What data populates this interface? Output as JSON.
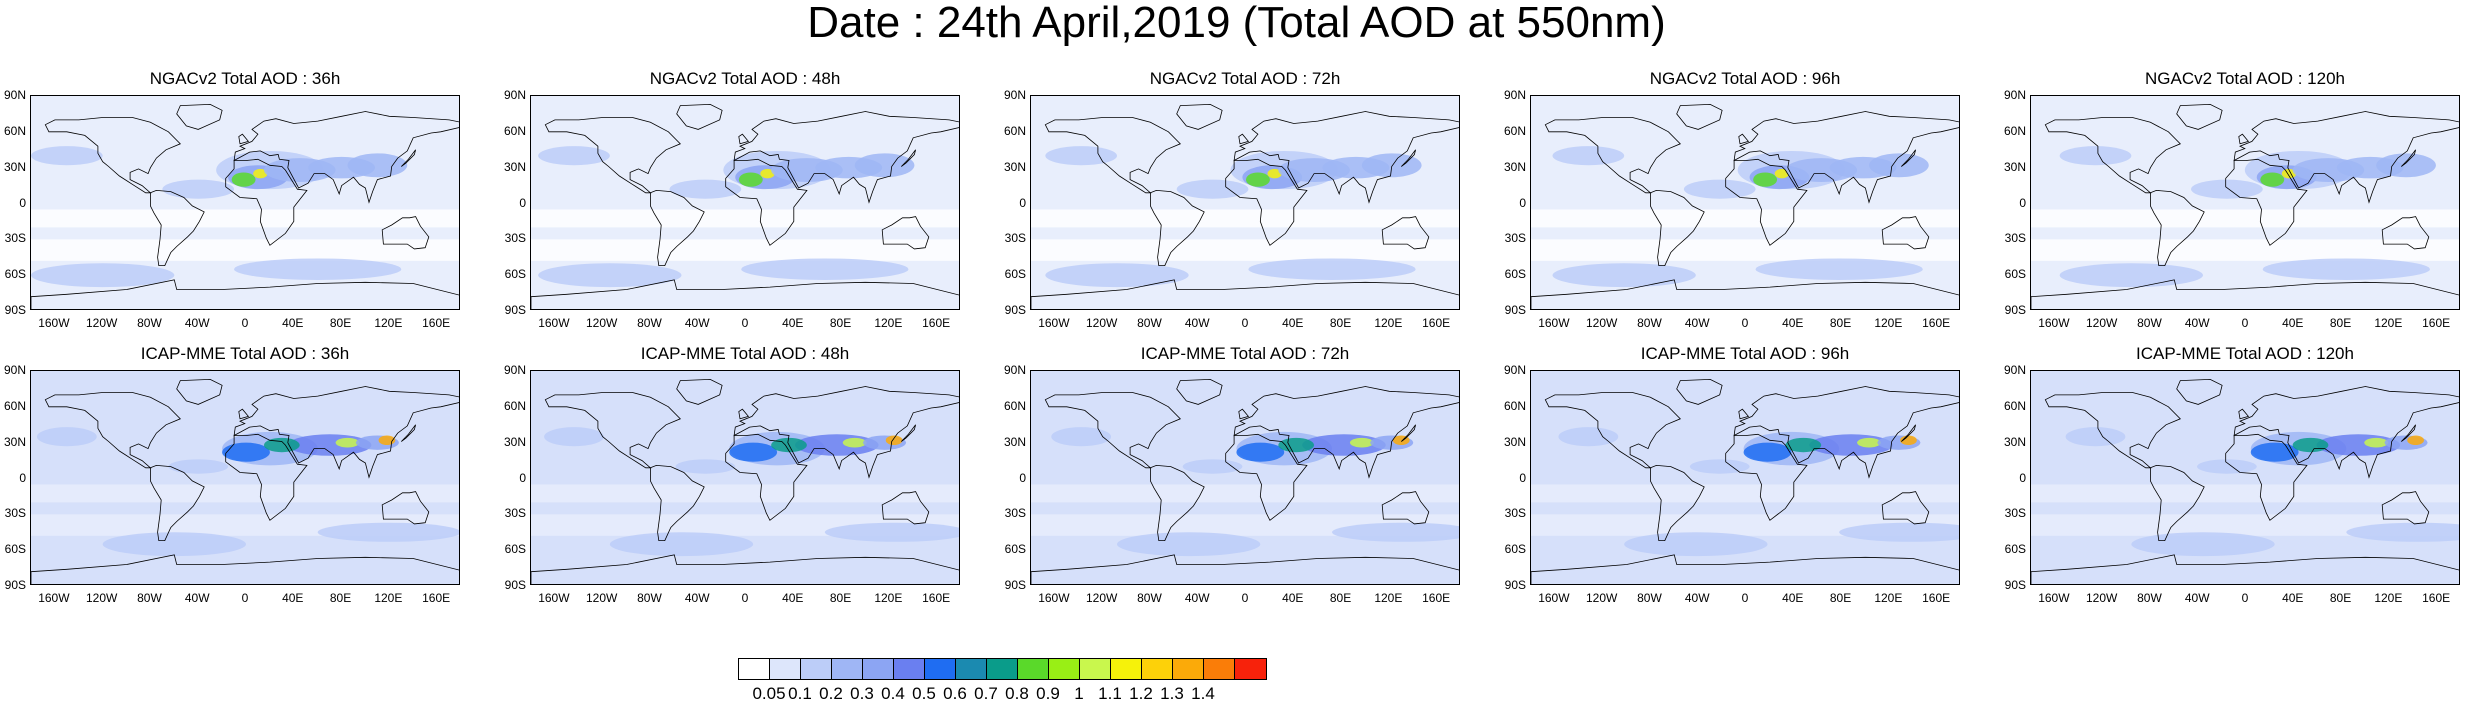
{
  "title": "Date : 24th April,2019 (Total AOD at 550nm)",
  "panels": [
    {
      "title": "NGACv2 Total AOD : 36h"
    },
    {
      "title": "NGACv2 Total AOD : 48h"
    },
    {
      "title": "NGACv2 Total AOD : 72h"
    },
    {
      "title": "NGACv2 Total AOD : 96h"
    },
    {
      "title": "NGACv2 Total AOD : 120h"
    },
    {
      "title": "ICAP-MME Total AOD : 36h"
    },
    {
      "title": "ICAP-MME Total AOD : 48h"
    },
    {
      "title": "ICAP-MME Total AOD : 72h"
    },
    {
      "title": "ICAP-MME Total AOD : 96h"
    },
    {
      "title": "ICAP-MME Total AOD : 120h"
    }
  ],
  "lat_labels": [
    "90N",
    "60N",
    "30N",
    "0",
    "30S",
    "60S",
    "90S"
  ],
  "lon_labels": [
    "160W",
    "120W",
    "80W",
    "40W",
    "0",
    "40E",
    "80E",
    "120E",
    "160E"
  ],
  "legend": {
    "colors": [
      "#ffffff",
      "#dde6fb",
      "#bccdf8",
      "#9fb6f5",
      "#8ca5f3",
      "#6a7ff0",
      "#1f6df2",
      "#1b8ab0",
      "#0a9c8a",
      "#5ad92a",
      "#99ef15",
      "#c9f74d",
      "#f6f20a",
      "#fdd109",
      "#fbaa09",
      "#fa7d08",
      "#f7220b"
    ],
    "labels": [
      "0.05",
      "0.1",
      "0.2",
      "0.3",
      "0.4",
      "0.5",
      "0.6",
      "0.7",
      "0.8",
      "0.9",
      "1",
      "1.1",
      "1.2",
      "1.3",
      "1.4"
    ]
  }
}
